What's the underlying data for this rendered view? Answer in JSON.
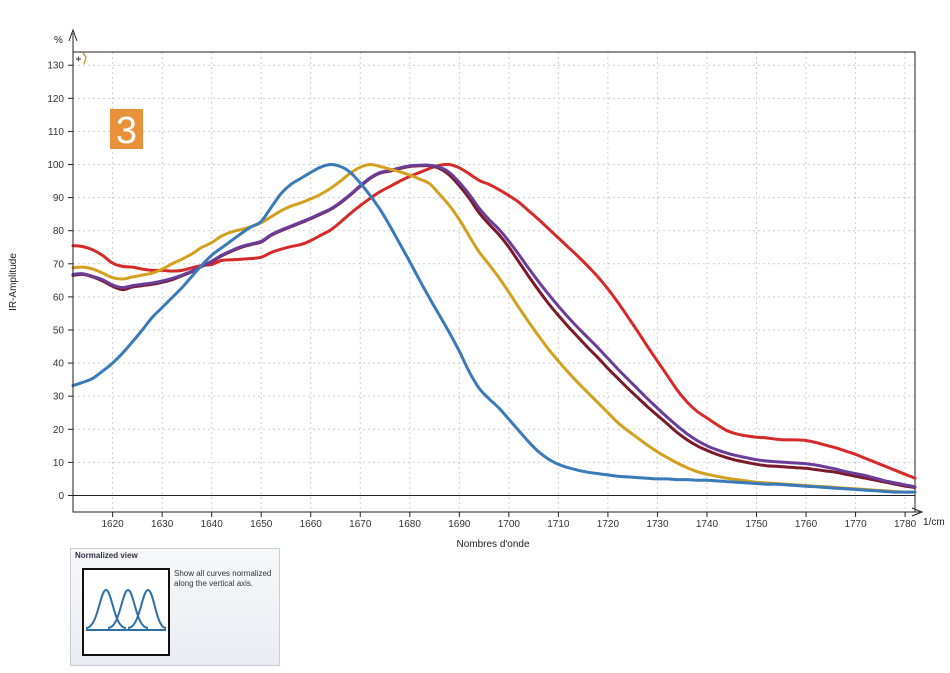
{
  "chart_data": {
    "type": "line",
    "title": "",
    "xlabel": "Nombres d'onde",
    "x_unit": "1/cm",
    "ylabel": "IR-Amplitude",
    "y_unit": "%",
    "xlim": [
      1612,
      1782
    ],
    "ylim": [
      -5,
      134
    ],
    "xticks": [
      1620,
      1630,
      1640,
      1650,
      1660,
      1670,
      1680,
      1690,
      1700,
      1710,
      1720,
      1730,
      1740,
      1750,
      1760,
      1770,
      1780
    ],
    "yticks": [
      0,
      10,
      20,
      30,
      40,
      50,
      60,
      70,
      80,
      90,
      100,
      110,
      120,
      130
    ],
    "grid": true,
    "legend": "none",
    "annotation": "3",
    "x": [
      1612,
      1614,
      1616,
      1618,
      1620,
      1622,
      1624,
      1626,
      1628,
      1630,
      1632,
      1634,
      1636,
      1638,
      1640,
      1642,
      1644,
      1646,
      1648,
      1650,
      1652,
      1654,
      1656,
      1658,
      1660,
      1662,
      1664,
      1666,
      1668,
      1670,
      1672,
      1674,
      1676,
      1678,
      1680,
      1682,
      1684,
      1686,
      1688,
      1690,
      1692,
      1694,
      1696,
      1698,
      1700,
      1702,
      1704,
      1706,
      1708,
      1710,
      1712,
      1714,
      1716,
      1718,
      1720,
      1722,
      1724,
      1726,
      1728,
      1730,
      1732,
      1734,
      1736,
      1738,
      1740,
      1742,
      1744,
      1746,
      1748,
      1750,
      1752,
      1754,
      1756,
      1758,
      1760,
      1762,
      1764,
      1766,
      1768,
      1770,
      1772,
      1774,
      1776,
      1778,
      1780,
      1782
    ],
    "series": [
      {
        "color": "#d62a2a",
        "values": [
          75.5,
          75.2,
          74.2,
          72.5,
          70.2,
          69.2,
          69.0,
          68.4,
          68.0,
          68.0,
          67.8,
          68.0,
          68.8,
          69.5,
          69.8,
          71.0,
          71.2,
          71.4,
          71.6,
          72.0,
          73.4,
          74.4,
          75.2,
          75.8,
          77.0,
          78.6,
          80.2,
          82.6,
          85.2,
          87.6,
          89.8,
          91.8,
          93.4,
          95.0,
          96.4,
          97.6,
          98.8,
          99.8,
          100.0,
          99.0,
          97.2,
          95.2,
          94.0,
          92.4,
          90.6,
          88.6,
          86.0,
          83.4,
          80.6,
          77.8,
          75.0,
          72.2,
          69.2,
          66.0,
          62.4,
          58.4,
          54.0,
          49.6,
          45.0,
          40.6,
          36.2,
          31.8,
          28.2,
          25.4,
          23.4,
          21.4,
          19.6,
          18.6,
          18.0,
          17.6,
          17.4,
          17.0,
          16.8,
          16.8,
          16.6,
          16.0,
          15.2,
          14.4,
          13.4,
          12.4,
          11.2,
          10.0,
          8.8,
          7.6,
          6.4,
          5.2
        ]
      },
      {
        "color": "#7a1a2a",
        "values": [
          66.5,
          66.8,
          66.0,
          64.8,
          63.2,
          62.2,
          63.0,
          63.4,
          63.8,
          64.4,
          65.2,
          66.4,
          67.6,
          69.2,
          70.6,
          72.4,
          73.8,
          75.0,
          75.8,
          76.6,
          78.6,
          80.0,
          81.2,
          82.4,
          83.6,
          85.0,
          86.4,
          88.4,
          90.8,
          93.4,
          95.8,
          97.4,
          98.0,
          98.8,
          99.4,
          99.6,
          99.6,
          98.8,
          96.8,
          93.6,
          89.8,
          85.4,
          82.0,
          78.8,
          75.0,
          70.6,
          66.2,
          62.0,
          58.0,
          54.4,
          51.0,
          47.8,
          44.6,
          41.6,
          38.4,
          35.4,
          32.4,
          29.6,
          26.8,
          24.2,
          21.6,
          19.0,
          16.8,
          15.0,
          13.6,
          12.4,
          11.4,
          10.6,
          10.0,
          9.4,
          9.0,
          8.8,
          8.6,
          8.4,
          8.2,
          7.8,
          7.4,
          7.0,
          6.4,
          5.8,
          5.2,
          4.6,
          4.0,
          3.4,
          2.8,
          2.4
        ]
      },
      {
        "color": "#6a3d9a",
        "values": [
          66.8,
          67.0,
          66.2,
          65.2,
          63.6,
          62.8,
          63.4,
          63.8,
          64.2,
          64.8,
          65.6,
          66.6,
          67.8,
          69.2,
          70.8,
          72.6,
          74.0,
          75.2,
          76.0,
          76.8,
          78.8,
          80.2,
          81.4,
          82.6,
          83.8,
          85.2,
          86.6,
          88.6,
          91.0,
          93.6,
          96.0,
          97.6,
          98.2,
          99.0,
          99.6,
          99.8,
          99.8,
          99.2,
          97.6,
          94.6,
          91.0,
          86.8,
          83.4,
          80.4,
          76.8,
          72.8,
          68.6,
          64.6,
          60.8,
          57.2,
          53.8,
          50.6,
          47.6,
          44.6,
          41.4,
          38.2,
          35.2,
          32.2,
          29.2,
          26.4,
          23.6,
          21.0,
          18.6,
          16.6,
          15.0,
          13.8,
          12.8,
          12.0,
          11.4,
          10.8,
          10.4,
          10.2,
          10.0,
          9.8,
          9.6,
          9.2,
          8.6,
          8.0,
          7.2,
          6.6,
          6.0,
          5.2,
          4.4,
          3.8,
          3.2,
          2.6
        ]
      },
      {
        "color": "#d4a020",
        "values": [
          68.8,
          69.0,
          68.4,
          67.2,
          65.8,
          65.4,
          66.0,
          66.6,
          67.2,
          68.4,
          70.0,
          71.4,
          73.0,
          75.0,
          76.4,
          78.4,
          79.6,
          80.4,
          81.2,
          82.4,
          84.2,
          86.0,
          87.4,
          88.4,
          89.6,
          91.0,
          92.8,
          95.0,
          97.4,
          99.2,
          100.0,
          99.4,
          98.6,
          97.8,
          96.8,
          95.6,
          94.2,
          91.0,
          87.6,
          83.4,
          78.4,
          73.6,
          69.8,
          65.8,
          61.4,
          56.8,
          52.4,
          48.2,
          44.2,
          40.6,
          37.2,
          34.0,
          31.0,
          28.0,
          25.0,
          22.0,
          19.6,
          17.4,
          15.2,
          13.2,
          11.4,
          9.8,
          8.4,
          7.2,
          6.4,
          5.8,
          5.2,
          4.8,
          4.4,
          4.0,
          3.8,
          3.6,
          3.4,
          3.2,
          3.0,
          2.8,
          2.6,
          2.4,
          2.2,
          2.0,
          1.8,
          1.6,
          1.4,
          1.2,
          1.0,
          1.0
        ]
      },
      {
        "color": "#3a7ab8",
        "values": [
          33.2,
          34.2,
          35.4,
          37.6,
          40.0,
          43.0,
          46.4,
          50.0,
          53.8,
          56.8,
          59.8,
          62.8,
          66.2,
          69.6,
          72.6,
          74.8,
          77.0,
          79.2,
          81.2,
          82.8,
          87.0,
          91.2,
          94.0,
          95.8,
          97.6,
          99.2,
          100.0,
          99.4,
          97.6,
          94.4,
          90.6,
          86.4,
          81.4,
          76.0,
          70.6,
          65.0,
          59.6,
          54.4,
          49.2,
          43.6,
          37.4,
          32.4,
          29.2,
          26.4,
          23.0,
          19.6,
          16.2,
          13.2,
          11.0,
          9.4,
          8.4,
          7.6,
          7.0,
          6.6,
          6.2,
          5.8,
          5.6,
          5.4,
          5.2,
          5.0,
          5.0,
          4.8,
          4.8,
          4.6,
          4.6,
          4.4,
          4.2,
          4.0,
          3.8,
          3.6,
          3.4,
          3.4,
          3.2,
          3.0,
          2.8,
          2.6,
          2.4,
          2.2,
          2.0,
          1.8,
          1.6,
          1.4,
          1.2,
          1.0,
          1.0,
          1.0
        ]
      }
    ]
  },
  "panel": {
    "title": "Normalized view",
    "description_line1": "Show all curves normalized",
    "description_line2": "along the vertical axis."
  }
}
